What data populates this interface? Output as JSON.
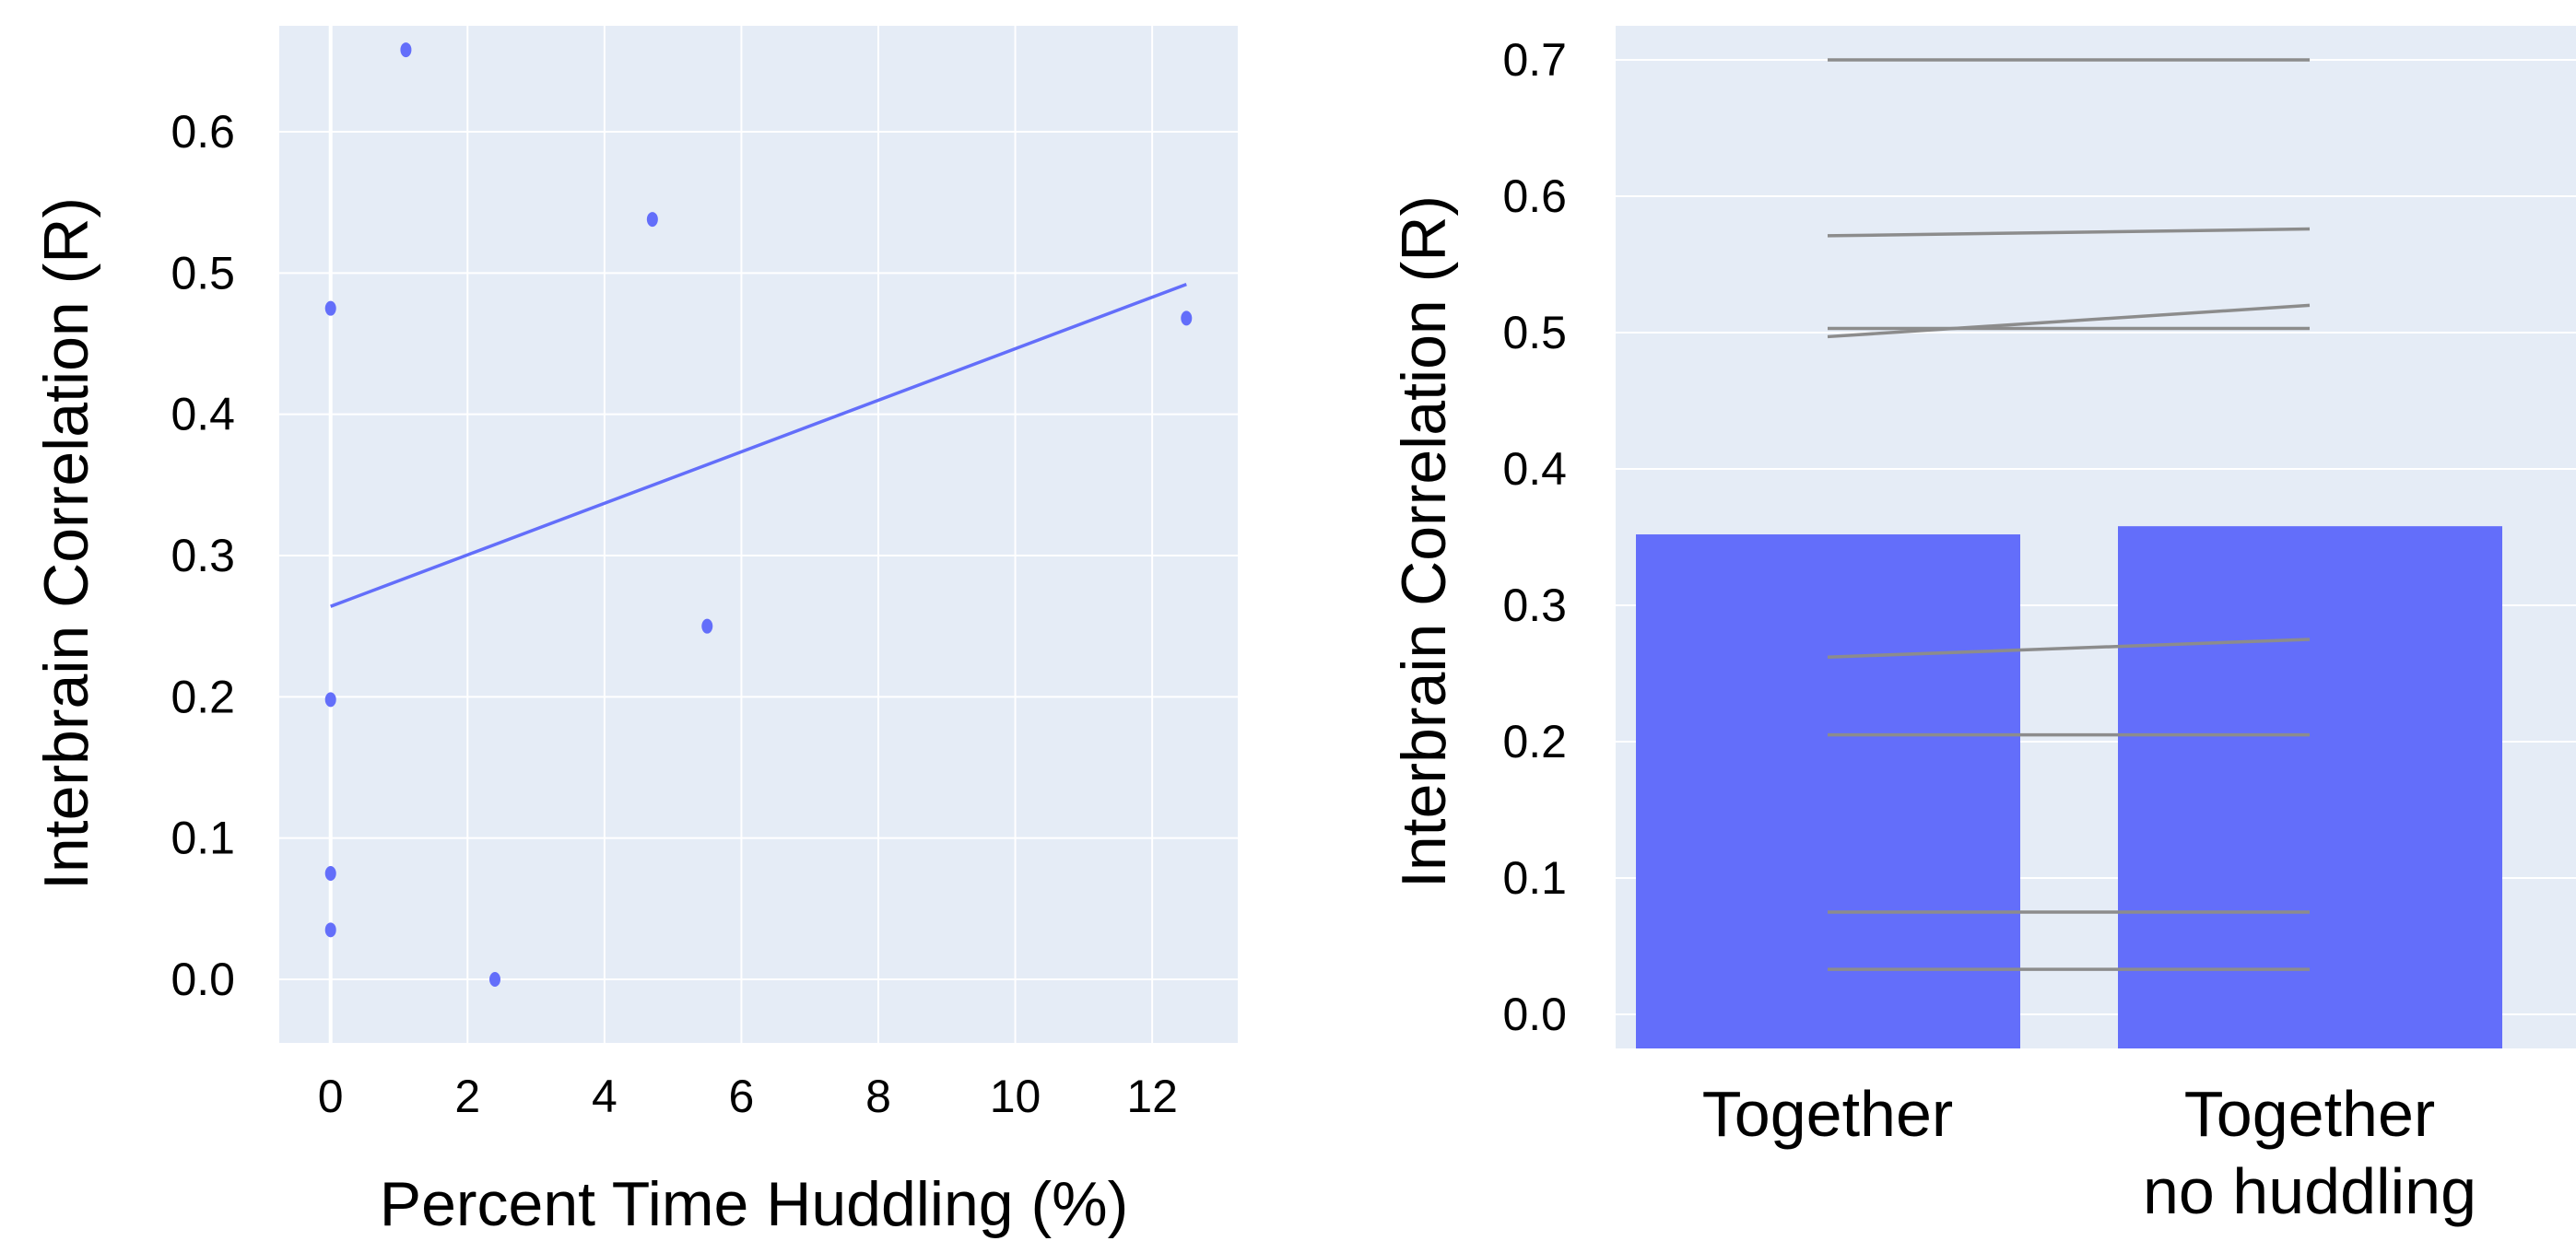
{
  "chart_data": [
    {
      "type": "scatter",
      "xlabel": "Percent Time Huddling (%)",
      "ylabel": "Interbrain Correlation (R)",
      "xlim": [
        -0.75,
        13.25
      ],
      "ylim": [
        -0.045,
        0.675
      ],
      "xticks": [
        0,
        2,
        4,
        6,
        8,
        10,
        12
      ],
      "yticks": [
        0.0,
        0.1,
        0.2,
        0.3,
        0.4,
        0.5,
        0.6
      ],
      "xtick_labels": [
        "0",
        "2",
        "4",
        "6",
        "8",
        "10",
        "12"
      ],
      "ytick_labels": [
        "0.0",
        "0.1",
        "0.2",
        "0.3",
        "0.4",
        "0.5",
        "0.6"
      ],
      "grid": true,
      "color": "#636efa",
      "points": [
        {
          "x": 0.0,
          "y": 0.475
        },
        {
          "x": 0.0,
          "y": 0.198
        },
        {
          "x": 0.0,
          "y": 0.075
        },
        {
          "x": 0.0,
          "y": 0.035
        },
        {
          "x": 1.1,
          "y": 0.658
        },
        {
          "x": 2.4,
          "y": 0.0
        },
        {
          "x": 4.7,
          "y": 0.538
        },
        {
          "x": 5.5,
          "y": 0.25
        },
        {
          "x": 12.5,
          "y": 0.468
        }
      ],
      "fit_line": {
        "x": [
          0.0,
          12.5
        ],
        "y": [
          0.264,
          0.492
        ]
      }
    },
    {
      "type": "bar",
      "categories": [
        "Together",
        "Together no huddling"
      ],
      "values": [
        0.352,
        0.358
      ],
      "ylabel": "Interbrain Correlation (R)",
      "ylim": [
        -0.025,
        0.725
      ],
      "yticks": [
        0.0,
        0.1,
        0.2,
        0.3,
        0.4,
        0.5,
        0.6,
        0.7
      ],
      "ytick_labels": [
        "0.0",
        "0.1",
        "0.2",
        "0.3",
        "0.4",
        "0.5",
        "0.6",
        "0.7"
      ],
      "grid": true,
      "color": "#636efa",
      "line_color": "#8c8c8c",
      "paired_lines": [
        {
          "together": 0.7,
          "no_huddling": 0.7
        },
        {
          "together": 0.571,
          "no_huddling": 0.576
        },
        {
          "together": 0.503,
          "no_huddling": 0.503
        },
        {
          "together": 0.497,
          "no_huddling": 0.52
        },
        {
          "together": 0.262,
          "no_huddling": 0.275
        },
        {
          "together": 0.205,
          "no_huddling": 0.205
        },
        {
          "together": 0.075,
          "no_huddling": 0.075
        },
        {
          "together": 0.033,
          "no_huddling": 0.033
        }
      ]
    }
  ]
}
